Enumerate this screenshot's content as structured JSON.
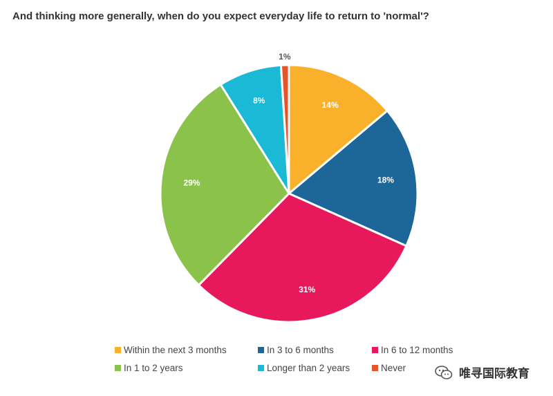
{
  "title": "And thinking more generally, when do you expect everyday life to return to 'normal'?",
  "chart_data": {
    "type": "pie",
    "title": "And thinking more generally, when do you expect everyday life to return to 'normal'?",
    "slices": [
      {
        "name": "Within the next 3 months",
        "value": 14,
        "label": "14%",
        "color": "#f9b12c"
      },
      {
        "name": "In 3 to 6 months",
        "value": 18,
        "label": "18%",
        "color": "#1c6699"
      },
      {
        "name": "In 6 to 12 months",
        "value": 31,
        "label": "31%",
        "color": "#e8185d"
      },
      {
        "name": "In 1 to 2 years",
        "value": 29,
        "label": "29%",
        "color": "#8bc34a"
      },
      {
        "name": "Longer than 2 years",
        "value": 8,
        "label": "8%",
        "color": "#1ab9d6"
      },
      {
        "name": "Never",
        "value": 1,
        "label": "1%",
        "color": "#e8542a"
      }
    ],
    "legend_position": "bottom"
  },
  "watermark": {
    "text": "唯寻国际教育",
    "icon": "wechat-icon"
  }
}
